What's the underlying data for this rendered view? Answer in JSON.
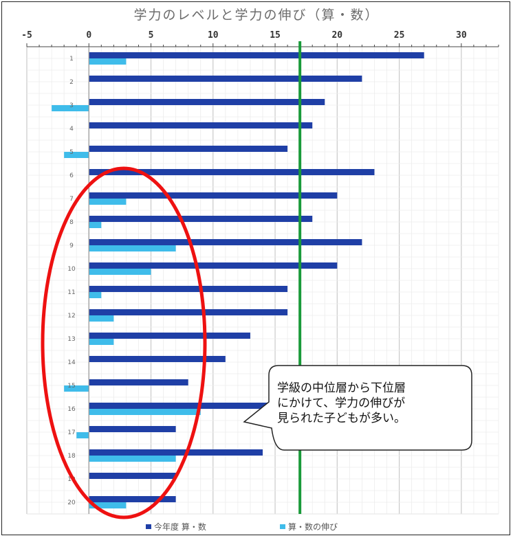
{
  "chart_data": {
    "type": "bar",
    "orientation": "horizontal",
    "title": "学力のレベルと学力の伸び（算・数）",
    "xlabel": "",
    "ylabel": "",
    "xlim": [
      -5,
      33
    ],
    "xticks": [
      -5,
      0,
      5,
      10,
      15,
      20,
      25,
      30
    ],
    "grid": true,
    "legend_position": "bottom",
    "categories": [
      "1",
      "2",
      "3",
      "4",
      "5",
      "6",
      "7",
      "8",
      "9",
      "10",
      "11",
      "12",
      "13",
      "14",
      "15",
      "16",
      "17",
      "18",
      "19",
      "20"
    ],
    "series": [
      {
        "name": "今年度 算・数",
        "color": "#1f3fa6",
        "values": [
          27,
          22,
          19,
          18,
          16,
          23,
          20,
          18,
          22,
          20,
          16,
          16,
          13,
          11,
          8,
          17,
          7,
          14,
          7,
          7
        ]
      },
      {
        "name": "算・数の伸び",
        "color": "#3fbcea",
        "values": [
          3,
          0,
          -3,
          0,
          -2,
          0,
          3,
          1,
          7,
          5,
          1,
          2,
          2,
          0,
          -2,
          9,
          -1,
          7,
          0,
          3
        ]
      }
    ],
    "reference_line": {
      "value": 17,
      "color": "#1a9a3a"
    },
    "annotation": {
      "lines": [
        "学級の中位層から下位層",
        "にかけて、学力の伸びが",
        "見られた子どもが多い。"
      ]
    }
  }
}
